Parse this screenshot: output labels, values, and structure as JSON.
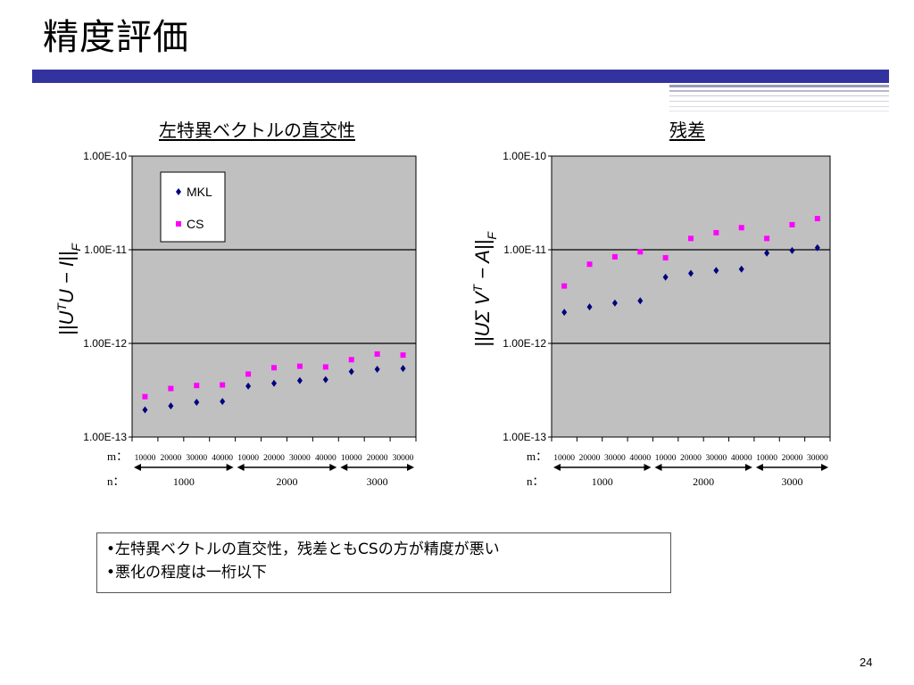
{
  "slide": {
    "title": "精度評価",
    "page_number": "24",
    "accent_color": "#3333a0"
  },
  "notes": [
    "•左特異ベクトルの直交性，残差ともCSの方が精度が悪い",
    "•悪化の程度は一桁以下"
  ],
  "chart_data": [
    {
      "type": "scatter",
      "title": "左特異ベクトルの直交性",
      "ylabel": "||U^T U − I||_F",
      "yscale": "log",
      "ylim": [
        1e-13,
        1e-10
      ],
      "yticks": [
        "1.00E-13",
        "1.00E-12",
        "1.00E-11",
        "1.00E-10"
      ],
      "grid": true,
      "plot_background": "#c0c0c0",
      "legend_position": "top-left",
      "m_label": "m：",
      "n_label": "n：",
      "categories": [
        "10000",
        "20000",
        "30000",
        "40000",
        "10000",
        "20000",
        "30000",
        "40000",
        "10000",
        "20000",
        "30000"
      ],
      "n_groups": [
        {
          "label": "1000",
          "count": 4
        },
        {
          "label": "2000",
          "count": 4
        },
        {
          "label": "3000",
          "count": 3
        }
      ],
      "series": [
        {
          "name": "MKL",
          "color": "#000080",
          "marker": "diamond",
          "values": [
            1.95e-13,
            2.15e-13,
            2.35e-13,
            2.4e-13,
            3.5e-13,
            3.75e-13,
            4e-13,
            4.1e-13,
            5e-13,
            5.3e-13,
            5.4e-13
          ]
        },
        {
          "name": "CS",
          "color": "#ff00ff",
          "marker": "square",
          "values": [
            2.7e-13,
            3.3e-13,
            3.55e-13,
            3.6e-13,
            4.7e-13,
            5.5e-13,
            5.7e-13,
            5.6e-13,
            6.7e-13,
            7.7e-13,
            7.5e-13
          ]
        }
      ]
    },
    {
      "type": "scatter",
      "title": "残差",
      "ylabel": "||U Σ V^T − A||_F",
      "yscale": "log",
      "ylim": [
        1e-13,
        1e-10
      ],
      "yticks": [
        "1.00E-13",
        "1.00E-12",
        "1.00E-11",
        "1.00E-10"
      ],
      "grid": true,
      "plot_background": "#c0c0c0",
      "m_label": "m：",
      "n_label": "n：",
      "categories": [
        "10000",
        "20000",
        "30000",
        "40000",
        "10000",
        "20000",
        "30000",
        "40000",
        "10000",
        "20000",
        "30000"
      ],
      "n_groups": [
        {
          "label": "1000",
          "count": 4
        },
        {
          "label": "2000",
          "count": 4
        },
        {
          "label": "3000",
          "count": 3
        }
      ],
      "series": [
        {
          "name": "MKL",
          "color": "#000080",
          "marker": "diamond",
          "values": [
            2.15e-12,
            2.45e-12,
            2.7e-12,
            2.85e-12,
            5.1e-12,
            5.6e-12,
            6e-12,
            6.2e-12,
            9.2e-12,
            9.8e-12,
            1.05e-11
          ]
        },
        {
          "name": "CS",
          "color": "#ff00ff",
          "marker": "square",
          "values": [
            4.1e-12,
            7e-12,
            8.4e-12,
            9.5e-12,
            8.2e-12,
            1.32e-11,
            1.52e-11,
            1.72e-11,
            1.32e-11,
            1.85e-11,
            2.15e-11
          ]
        }
      ]
    }
  ]
}
